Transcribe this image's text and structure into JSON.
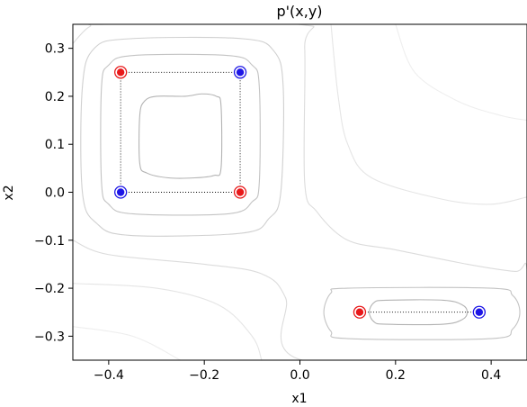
{
  "chart_data": {
    "type": "scatter",
    "title": "p'(x,y)",
    "xlabel": "x1",
    "ylabel": "x2",
    "xlim": [
      -0.475,
      0.475
    ],
    "ylim": [
      -0.35,
      0.35
    ],
    "xticks": [
      "−0.4",
      "−0.2",
      "0.0",
      "0.2",
      "0.4"
    ],
    "xtick_values": [
      -0.4,
      -0.2,
      0.0,
      0.2,
      0.4
    ],
    "yticks": [
      "0.3",
      "0.2",
      "0.1",
      "0.0",
      "−0.1",
      "−0.2",
      "−0.3"
    ],
    "ytick_values": [
      0.3,
      0.2,
      0.1,
      0.0,
      -0.1,
      -0.2,
      -0.3
    ],
    "grid": false,
    "points": [
      {
        "x": -0.375,
        "y": 0.25,
        "color": "red"
      },
      {
        "x": -0.125,
        "y": 0.25,
        "color": "blue"
      },
      {
        "x": -0.375,
        "y": 0.0,
        "color": "blue"
      },
      {
        "x": -0.125,
        "y": 0.0,
        "color": "red"
      },
      {
        "x": 0.125,
        "y": -0.25,
        "color": "red"
      },
      {
        "x": 0.375,
        "y": -0.25,
        "color": "blue"
      }
    ],
    "dotted_links": [
      {
        "from": [
          -0.375,
          0.25
        ],
        "to": [
          -0.125,
          0.25
        ]
      },
      {
        "from": [
          -0.125,
          0.25
        ],
        "to": [
          -0.125,
          0.0
        ]
      },
      {
        "from": [
          -0.125,
          0.0
        ],
        "to": [
          -0.375,
          0.0
        ]
      },
      {
        "from": [
          -0.375,
          0.0
        ],
        "to": [
          -0.375,
          0.25
        ]
      },
      {
        "from": [
          0.125,
          -0.25
        ],
        "to": [
          0.375,
          -0.25
        ]
      }
    ],
    "contours": [
      {
        "level": 1,
        "color": "#b3b3b3",
        "points": [
          [
            -0.24,
            0.2
          ],
          [
            -0.205,
            0.205
          ],
          [
            -0.175,
            0.2
          ],
          [
            -0.165,
            0.18
          ],
          [
            -0.165,
            0.05
          ],
          [
            -0.18,
            0.035
          ],
          [
            -0.22,
            0.03
          ],
          [
            -0.275,
            0.03
          ],
          [
            -0.32,
            0.04
          ],
          [
            -0.335,
            0.06
          ],
          [
            -0.335,
            0.16
          ],
          [
            -0.325,
            0.19
          ],
          [
            -0.3,
            0.2
          ]
        ]
      },
      {
        "level": 1,
        "color": "#b3b3b3",
        "points": [
          [
            0.18,
            -0.225
          ],
          [
            0.3,
            -0.225
          ],
          [
            0.34,
            -0.235
          ],
          [
            0.35,
            -0.25
          ],
          [
            0.34,
            -0.265
          ],
          [
            0.3,
            -0.275
          ],
          [
            0.18,
            -0.275
          ],
          [
            0.155,
            -0.27
          ],
          [
            0.145,
            -0.25
          ],
          [
            0.155,
            -0.23
          ]
        ]
      },
      {
        "level": 2,
        "color": "#c3c3c3",
        "points": [
          [
            -0.35,
            0.285
          ],
          [
            -0.15,
            0.285
          ],
          [
            -0.1,
            0.265
          ],
          [
            -0.085,
            0.22
          ],
          [
            -0.085,
            0.02
          ],
          [
            -0.1,
            -0.02
          ],
          [
            -0.15,
            -0.045
          ],
          [
            -0.35,
            -0.045
          ],
          [
            -0.4,
            -0.025
          ],
          [
            -0.415,
            0.02
          ],
          [
            -0.415,
            0.22
          ],
          [
            -0.4,
            0.265
          ]
        ]
      },
      {
        "level": 2,
        "color": "#c3c3c3",
        "points": [
          [
            0.1,
            -0.2
          ],
          [
            0.4,
            -0.2
          ],
          [
            0.445,
            -0.215
          ],
          [
            0.46,
            -0.25
          ],
          [
            0.445,
            -0.285
          ],
          [
            0.4,
            -0.305
          ],
          [
            0.1,
            -0.305
          ],
          [
            0.065,
            -0.29
          ],
          [
            0.05,
            -0.25
          ],
          [
            0.065,
            -0.21
          ]
        ]
      },
      {
        "level": 3,
        "color": "#d0d0d0",
        "points": [
          [
            -0.355,
            0.32
          ],
          [
            -0.12,
            0.32
          ],
          [
            -0.055,
            0.295
          ],
          [
            -0.035,
            0.22
          ],
          [
            -0.04,
            0.0
          ],
          [
            -0.065,
            -0.055
          ],
          [
            -0.12,
            -0.085
          ],
          [
            -0.355,
            -0.09
          ],
          [
            -0.425,
            -0.065
          ],
          [
            -0.455,
            0.0
          ],
          [
            -0.455,
            0.22
          ],
          [
            -0.43,
            0.3
          ]
        ]
      },
      {
        "level": 4,
        "color": "#dcdcdc",
        "points": [
          [
            -0.475,
            0.31
          ],
          [
            -0.44,
            0.345
          ],
          [
            -0.4,
            0.35
          ],
          [
            -0.005,
            0.35
          ],
          [
            0.01,
            0.3
          ],
          [
            0.01,
            0.02
          ],
          [
            0.035,
            -0.04
          ],
          [
            0.1,
            -0.1
          ],
          [
            0.2,
            -0.12
          ],
          [
            0.35,
            -0.15
          ],
          [
            0.45,
            -0.165
          ],
          [
            0.475,
            -0.16
          ],
          [
            0.475,
            -0.35
          ],
          [
            0.005,
            -0.35
          ],
          [
            -0.03,
            -0.22
          ],
          [
            -0.08,
            -0.17
          ],
          [
            -0.2,
            -0.15
          ],
          [
            -0.4,
            -0.13
          ],
          [
            -0.475,
            -0.1
          ]
        ],
        "closed": false
      },
      {
        "level": 5,
        "color": "#e5e5e5",
        "points": [
          [
            0.065,
            0.35
          ],
          [
            0.08,
            0.2
          ],
          [
            0.1,
            0.1
          ],
          [
            0.15,
            0.03
          ],
          [
            0.3,
            -0.015
          ],
          [
            0.4,
            -0.025
          ],
          [
            0.475,
            -0.01
          ]
        ],
        "closed": false
      },
      {
        "level": 5,
        "color": "#e5e5e5",
        "points": [
          [
            -0.475,
            -0.19
          ],
          [
            -0.3,
            -0.2
          ],
          [
            -0.17,
            -0.235
          ],
          [
            -0.1,
            -0.3
          ],
          [
            -0.08,
            -0.35
          ]
        ],
        "closed": false
      },
      {
        "level": 6,
        "color": "#eeeeee",
        "points": [
          [
            0.2,
            0.35
          ],
          [
            0.24,
            0.25
          ],
          [
            0.33,
            0.19
          ],
          [
            0.42,
            0.16
          ],
          [
            0.475,
            0.15
          ]
        ],
        "closed": false
      },
      {
        "level": 6,
        "color": "#eeeeee",
        "points": [
          [
            -0.475,
            -0.28
          ],
          [
            -0.35,
            -0.3
          ],
          [
            -0.25,
            -0.35
          ]
        ],
        "closed": false
      }
    ]
  }
}
